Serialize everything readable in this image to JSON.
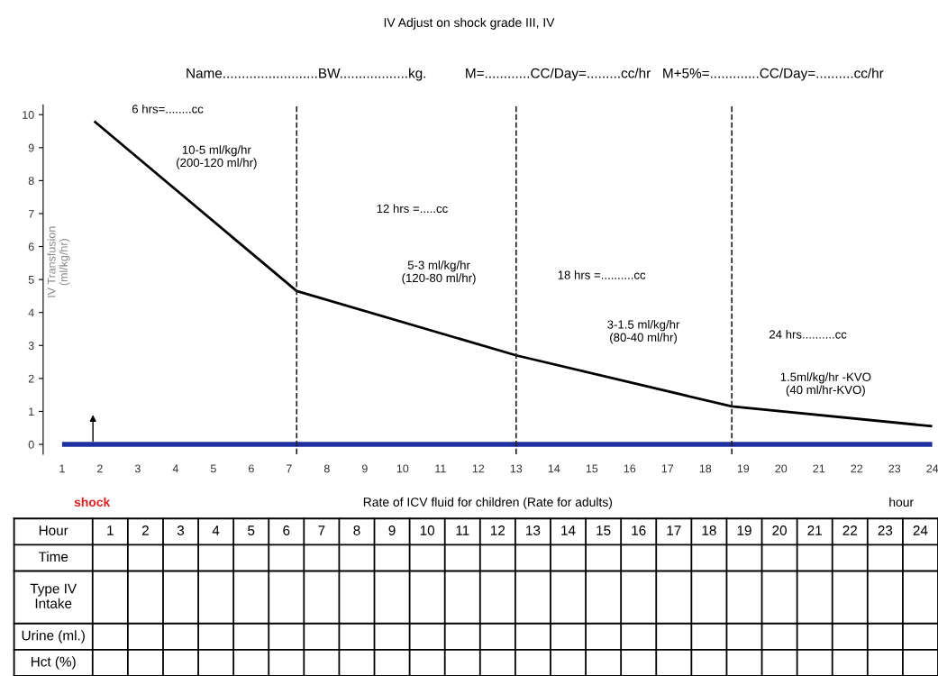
{
  "chart_data": [
    {
      "type": "line",
      "title": "IV Adjust on shock grade III, IV",
      "subtitle": "Name.........................BW..................kg.          M=............CC/Day=.........cc/hr   M+5%=.............CC/Day=..........cc/hr",
      "xlabel": "Rate of ICV fluid for children (Rate for adults)",
      "ylabel": "IV Transfusion\n(ml/kg/hr)",
      "series": [
        {
          "color": "#000000",
          "x": [
            1.85,
            7.2,
            13,
            18.7,
            24
          ],
          "values": [
            9.8,
            4.65,
            2.7,
            1.15,
            0.55
          ]
        },
        {
          "color": "#1f2fa0",
          "x": [
            1,
            24
          ],
          "values": [
            0,
            0
          ]
        }
      ],
      "xlim": [
        0.5,
        24
      ],
      "ylim": [
        -0.3,
        10.3
      ],
      "xticks": [
        1,
        2,
        3,
        4,
        5,
        6,
        7,
        8,
        9,
        10,
        11,
        12,
        13,
        14,
        15,
        16,
        17,
        18,
        19,
        20,
        21,
        22,
        23,
        24
      ],
      "yticks": [
        0,
        1,
        2,
        3,
        4,
        5,
        6,
        7,
        8,
        9,
        10
      ],
      "ref_lines": [
        {
          "axis": "x",
          "value": 7.2,
          "line_style": "dashed"
        },
        {
          "axis": "x",
          "value": 13,
          "line_style": "dashed"
        },
        {
          "axis": "x",
          "value": 18.7,
          "line_style": "dashed"
        }
      ],
      "annotations": [
        "6 hrs=........cc",
        "10-5 ml/kg/hr\n(200-120 ml/hr)",
        "12 hrs =.....cc",
        "5-3 ml/kg/hr\n(120-80 ml/hr)",
        "18 hrs =..........cc",
        "3-1.5 ml/kg/hr\n(80-40 ml/hr)",
        "24 hrs..........cc",
        "1.5ml/kg/hr -KVO\n(40 ml/hr-KVO)",
        "shock",
        "hour"
      ]
    },
    {
      "type": "heatmap",
      "xlabel": "Hour",
      "categories": [
        "1",
        "2",
        "3",
        "4",
        "5",
        "6",
        "7",
        "8",
        "9",
        "10",
        "11",
        "12",
        "13",
        "14",
        "15",
        "16",
        "17",
        "18",
        "19",
        "20",
        "21",
        "22",
        "23",
        "24"
      ],
      "y_categories": [
        "Time",
        "Type IV\nIntake",
        "Urine (ml.)",
        "Hct (%)"
      ],
      "cells": [
        [
          null,
          null,
          null,
          null,
          null,
          null,
          null,
          null,
          null,
          null,
          null,
          null,
          null,
          null,
          null,
          null,
          null,
          null,
          null,
          null,
          null,
          null,
          null,
          null
        ],
        [
          null,
          null,
          null,
          null,
          null,
          null,
          null,
          null,
          null,
          null,
          null,
          null,
          null,
          null,
          null,
          null,
          null,
          null,
          null,
          null,
          null,
          null,
          null,
          null
        ],
        [
          null,
          null,
          null,
          null,
          null,
          null,
          null,
          null,
          null,
          null,
          null,
          null,
          null,
          null,
          null,
          null,
          null,
          null,
          null,
          null,
          null,
          null,
          null,
          null
        ],
        [
          null,
          null,
          null,
          null,
          null,
          null,
          null,
          null,
          null,
          null,
          null,
          null,
          null,
          null,
          null,
          null,
          null,
          null,
          null,
          null,
          null,
          null,
          null,
          null
        ]
      ]
    }
  ]
}
